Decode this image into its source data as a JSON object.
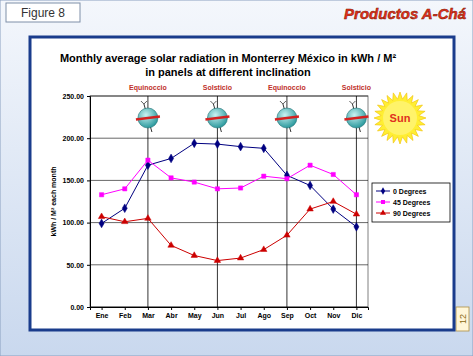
{
  "page": {
    "figure_label": "Figure 8",
    "brand": "Productos A-Chá",
    "page_number": "12"
  },
  "chart_data": {
    "type": "line",
    "title": [
      "Monthly average solar radiation in Monterrey México in kWh / M²",
      "in panels at different inclination"
    ],
    "y_label": "kWh / M² each month",
    "categories": [
      "Ene",
      "Feb",
      "Mar",
      "Abr",
      "May",
      "Jun",
      "Jul",
      "Ago",
      "Sep",
      "Oct",
      "Nov",
      "Dic"
    ],
    "series": [
      {
        "name": "0 Degrees",
        "color": "#000080",
        "marker": "diamond",
        "values": [
          99,
          117,
          168,
          176,
          194,
          193,
          190,
          188,
          156,
          144,
          116,
          95
        ]
      },
      {
        "name": "45 Degrees",
        "color": "#ff00ff",
        "marker": "square",
        "values": [
          133,
          140,
          174,
          153,
          148,
          140,
          141,
          155,
          152,
          168,
          157,
          133
        ]
      },
      {
        "name": "90 Degrees",
        "color": "#cc0000",
        "marker": "triangle",
        "values": [
          107,
          101,
          105,
          73,
          61,
          55,
          58,
          68,
          85,
          116,
          125,
          110
        ]
      }
    ],
    "ylim": [
      0,
      250
    ],
    "yticks": [
      {
        "value": 0,
        "label": "0.00"
      },
      {
        "value": 50,
        "label": "50.00"
      },
      {
        "value": 100,
        "label": "100.00"
      },
      {
        "value": 150,
        "label": "150.00"
      },
      {
        "value": 200,
        "label": "200.00"
      },
      {
        "value": 250,
        "label": "250.00"
      }
    ],
    "grid": true,
    "legend": "right",
    "annotations": [
      {
        "text": "Equinoccio",
        "category": "Mar"
      },
      {
        "text": "Solsticio",
        "category": "Jun"
      },
      {
        "text": "Equinoccio",
        "category": "Sep"
      },
      {
        "text": "Solsticio",
        "category": "Dic"
      }
    ],
    "sun_label": "Sun"
  }
}
